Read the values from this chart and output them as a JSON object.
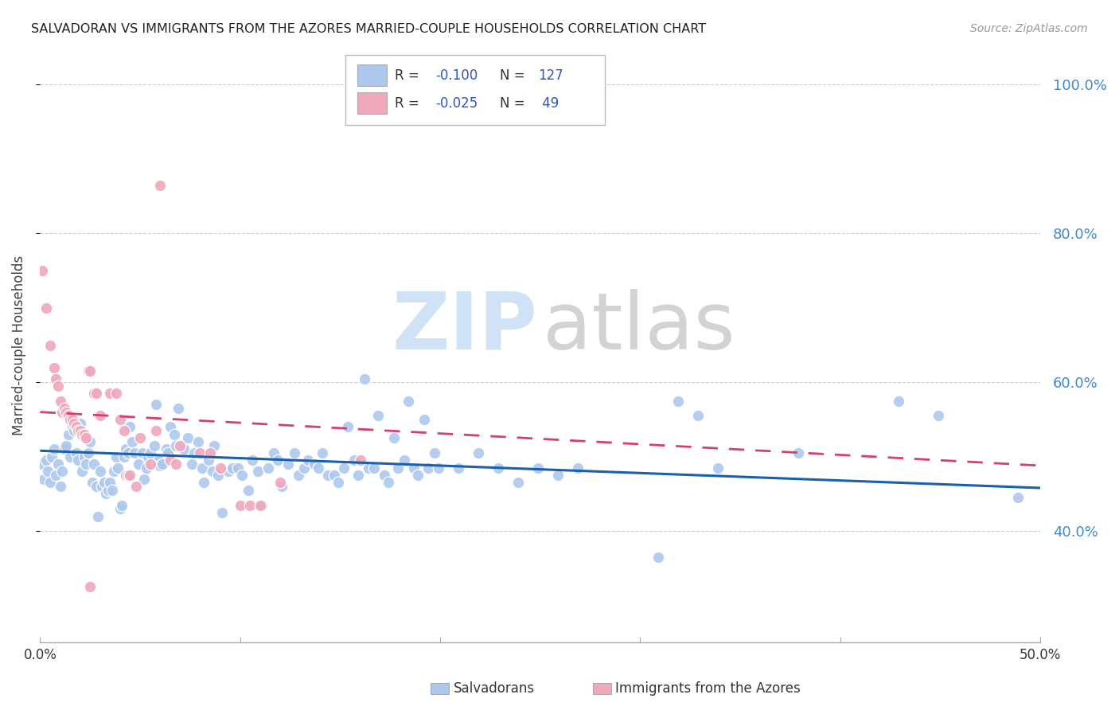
{
  "title": "SALVADORAN VS IMMIGRANTS FROM THE AZORES MARRIED-COUPLE HOUSEHOLDS CORRELATION CHART",
  "source": "Source: ZipAtlas.com",
  "ylabel": "Married-couple Households",
  "legend_labels": [
    "Salvadorans",
    "Immigrants from the Azores"
  ],
  "blue_color": "#adc8ed",
  "pink_color": "#f0a8bb",
  "trendline_blue": "#1a5faa",
  "trendline_pink": "#d44070",
  "background_color": "#ffffff",
  "grid_color": "#cccccc",
  "right_tick_color": "#4488cc",
  "blue_scatter": [
    [
      0.001,
      0.49
    ],
    [
      0.002,
      0.47
    ],
    [
      0.003,
      0.495
    ],
    [
      0.004,
      0.48
    ],
    [
      0.005,
      0.465
    ],
    [
      0.006,
      0.5
    ],
    [
      0.007,
      0.51
    ],
    [
      0.008,
      0.475
    ],
    [
      0.009,
      0.49
    ],
    [
      0.01,
      0.46
    ],
    [
      0.011,
      0.48
    ],
    [
      0.012,
      0.51
    ],
    [
      0.013,
      0.515
    ],
    [
      0.014,
      0.53
    ],
    [
      0.015,
      0.5
    ],
    [
      0.016,
      0.54
    ],
    [
      0.017,
      0.535
    ],
    [
      0.018,
      0.505
    ],
    [
      0.019,
      0.495
    ],
    [
      0.02,
      0.545
    ],
    [
      0.021,
      0.48
    ],
    [
      0.022,
      0.5
    ],
    [
      0.023,
      0.49
    ],
    [
      0.024,
      0.505
    ],
    [
      0.025,
      0.52
    ],
    [
      0.026,
      0.465
    ],
    [
      0.027,
      0.49
    ],
    [
      0.028,
      0.46
    ],
    [
      0.029,
      0.42
    ],
    [
      0.03,
      0.48
    ],
    [
      0.031,
      0.46
    ],
    [
      0.032,
      0.465
    ],
    [
      0.033,
      0.45
    ],
    [
      0.034,
      0.455
    ],
    [
      0.035,
      0.465
    ],
    [
      0.036,
      0.455
    ],
    [
      0.037,
      0.48
    ],
    [
      0.038,
      0.5
    ],
    [
      0.039,
      0.485
    ],
    [
      0.04,
      0.43
    ],
    [
      0.041,
      0.435
    ],
    [
      0.042,
      0.5
    ],
    [
      0.043,
      0.51
    ],
    [
      0.044,
      0.505
    ],
    [
      0.045,
      0.54
    ],
    [
      0.046,
      0.52
    ],
    [
      0.047,
      0.505
    ],
    [
      0.049,
      0.49
    ],
    [
      0.051,
      0.505
    ],
    [
      0.052,
      0.47
    ],
    [
      0.053,
      0.485
    ],
    [
      0.054,
      0.5
    ],
    [
      0.055,
      0.505
    ],
    [
      0.057,
      0.515
    ],
    [
      0.058,
      0.57
    ],
    [
      0.059,
      0.495
    ],
    [
      0.06,
      0.488
    ],
    [
      0.061,
      0.49
    ],
    [
      0.063,
      0.51
    ],
    [
      0.064,
      0.505
    ],
    [
      0.065,
      0.54
    ],
    [
      0.067,
      0.53
    ],
    [
      0.068,
      0.515
    ],
    [
      0.069,
      0.565
    ],
    [
      0.071,
      0.515
    ],
    [
      0.072,
      0.51
    ],
    [
      0.074,
      0.525
    ],
    [
      0.076,
      0.49
    ],
    [
      0.077,
      0.505
    ],
    [
      0.079,
      0.52
    ],
    [
      0.081,
      0.485
    ],
    [
      0.082,
      0.465
    ],
    [
      0.084,
      0.495
    ],
    [
      0.086,
      0.48
    ],
    [
      0.087,
      0.515
    ],
    [
      0.089,
      0.475
    ],
    [
      0.091,
      0.425
    ],
    [
      0.094,
      0.48
    ],
    [
      0.096,
      0.485
    ],
    [
      0.099,
      0.485
    ],
    [
      0.101,
      0.475
    ],
    [
      0.104,
      0.455
    ],
    [
      0.106,
      0.495
    ],
    [
      0.109,
      0.48
    ],
    [
      0.111,
      0.435
    ],
    [
      0.114,
      0.485
    ],
    [
      0.117,
      0.505
    ],
    [
      0.119,
      0.495
    ],
    [
      0.121,
      0.46
    ],
    [
      0.124,
      0.49
    ],
    [
      0.127,
      0.505
    ],
    [
      0.129,
      0.475
    ],
    [
      0.132,
      0.485
    ],
    [
      0.134,
      0.495
    ],
    [
      0.137,
      0.49
    ],
    [
      0.139,
      0.485
    ],
    [
      0.141,
      0.505
    ],
    [
      0.144,
      0.475
    ],
    [
      0.147,
      0.475
    ],
    [
      0.149,
      0.465
    ],
    [
      0.152,
      0.485
    ],
    [
      0.154,
      0.54
    ],
    [
      0.157,
      0.495
    ],
    [
      0.159,
      0.475
    ],
    [
      0.162,
      0.605
    ],
    [
      0.164,
      0.485
    ],
    [
      0.167,
      0.485
    ],
    [
      0.169,
      0.555
    ],
    [
      0.172,
      0.475
    ],
    [
      0.174,
      0.465
    ],
    [
      0.177,
      0.525
    ],
    [
      0.179,
      0.485
    ],
    [
      0.182,
      0.495
    ],
    [
      0.184,
      0.575
    ],
    [
      0.187,
      0.485
    ],
    [
      0.189,
      0.475
    ],
    [
      0.192,
      0.55
    ],
    [
      0.194,
      0.485
    ],
    [
      0.197,
      0.505
    ],
    [
      0.199,
      0.485
    ],
    [
      0.209,
      0.485
    ],
    [
      0.219,
      0.505
    ],
    [
      0.229,
      0.485
    ],
    [
      0.239,
      0.465
    ],
    [
      0.249,
      0.485
    ],
    [
      0.259,
      0.475
    ],
    [
      0.269,
      0.485
    ],
    [
      0.309,
      0.365
    ],
    [
      0.319,
      0.575
    ],
    [
      0.329,
      0.555
    ],
    [
      0.339,
      0.485
    ],
    [
      0.379,
      0.505
    ],
    [
      0.429,
      0.575
    ],
    [
      0.449,
      0.555
    ],
    [
      0.489,
      0.445
    ]
  ],
  "pink_scatter": [
    [
      0.001,
      0.75
    ],
    [
      0.003,
      0.7
    ],
    [
      0.005,
      0.65
    ],
    [
      0.007,
      0.62
    ],
    [
      0.008,
      0.605
    ],
    [
      0.009,
      0.595
    ],
    [
      0.01,
      0.575
    ],
    [
      0.011,
      0.56
    ],
    [
      0.012,
      0.565
    ],
    [
      0.013,
      0.56
    ],
    [
      0.014,
      0.555
    ],
    [
      0.015,
      0.55
    ],
    [
      0.016,
      0.55
    ],
    [
      0.017,
      0.545
    ],
    [
      0.018,
      0.54
    ],
    [
      0.019,
      0.535
    ],
    [
      0.02,
      0.535
    ],
    [
      0.021,
      0.53
    ],
    [
      0.022,
      0.53
    ],
    [
      0.023,
      0.525
    ],
    [
      0.024,
      0.615
    ],
    [
      0.025,
      0.615
    ],
    [
      0.027,
      0.585
    ],
    [
      0.028,
      0.585
    ],
    [
      0.03,
      0.555
    ],
    [
      0.035,
      0.585
    ],
    [
      0.038,
      0.585
    ],
    [
      0.04,
      0.55
    ],
    [
      0.042,
      0.535
    ],
    [
      0.043,
      0.475
    ],
    [
      0.044,
      0.475
    ],
    [
      0.045,
      0.475
    ],
    [
      0.048,
      0.46
    ],
    [
      0.05,
      0.525
    ],
    [
      0.055,
      0.49
    ],
    [
      0.058,
      0.535
    ],
    [
      0.06,
      0.865
    ],
    [
      0.065,
      0.495
    ],
    [
      0.068,
      0.49
    ],
    [
      0.07,
      0.515
    ],
    [
      0.08,
      0.505
    ],
    [
      0.085,
      0.505
    ],
    [
      0.09,
      0.485
    ],
    [
      0.1,
      0.435
    ],
    [
      0.105,
      0.435
    ],
    [
      0.11,
      0.435
    ],
    [
      0.12,
      0.465
    ],
    [
      0.025,
      0.325
    ],
    [
      0.16,
      0.495
    ]
  ],
  "xlim": [
    0.0,
    0.5
  ],
  "ylim": [
    0.25,
    1.05
  ],
  "xtick_positions": [
    0.0,
    0.1,
    0.2,
    0.3,
    0.4,
    0.5
  ],
  "xtick_labels_show": [
    "0.0%",
    "",
    "",
    "",
    "",
    "50.0%"
  ],
  "ytick_positions": [
    0.4,
    0.6,
    0.8,
    1.0
  ],
  "ytick_labels": [
    "40.0%",
    "60.0%",
    "80.0%",
    "100.0%"
  ],
  "blue_trend_x": [
    0.0,
    0.5
  ],
  "blue_trend_y": [
    0.508,
    0.458
  ],
  "pink_trend_x": [
    0.0,
    0.5
  ],
  "pink_trend_y": [
    0.56,
    0.488
  ]
}
